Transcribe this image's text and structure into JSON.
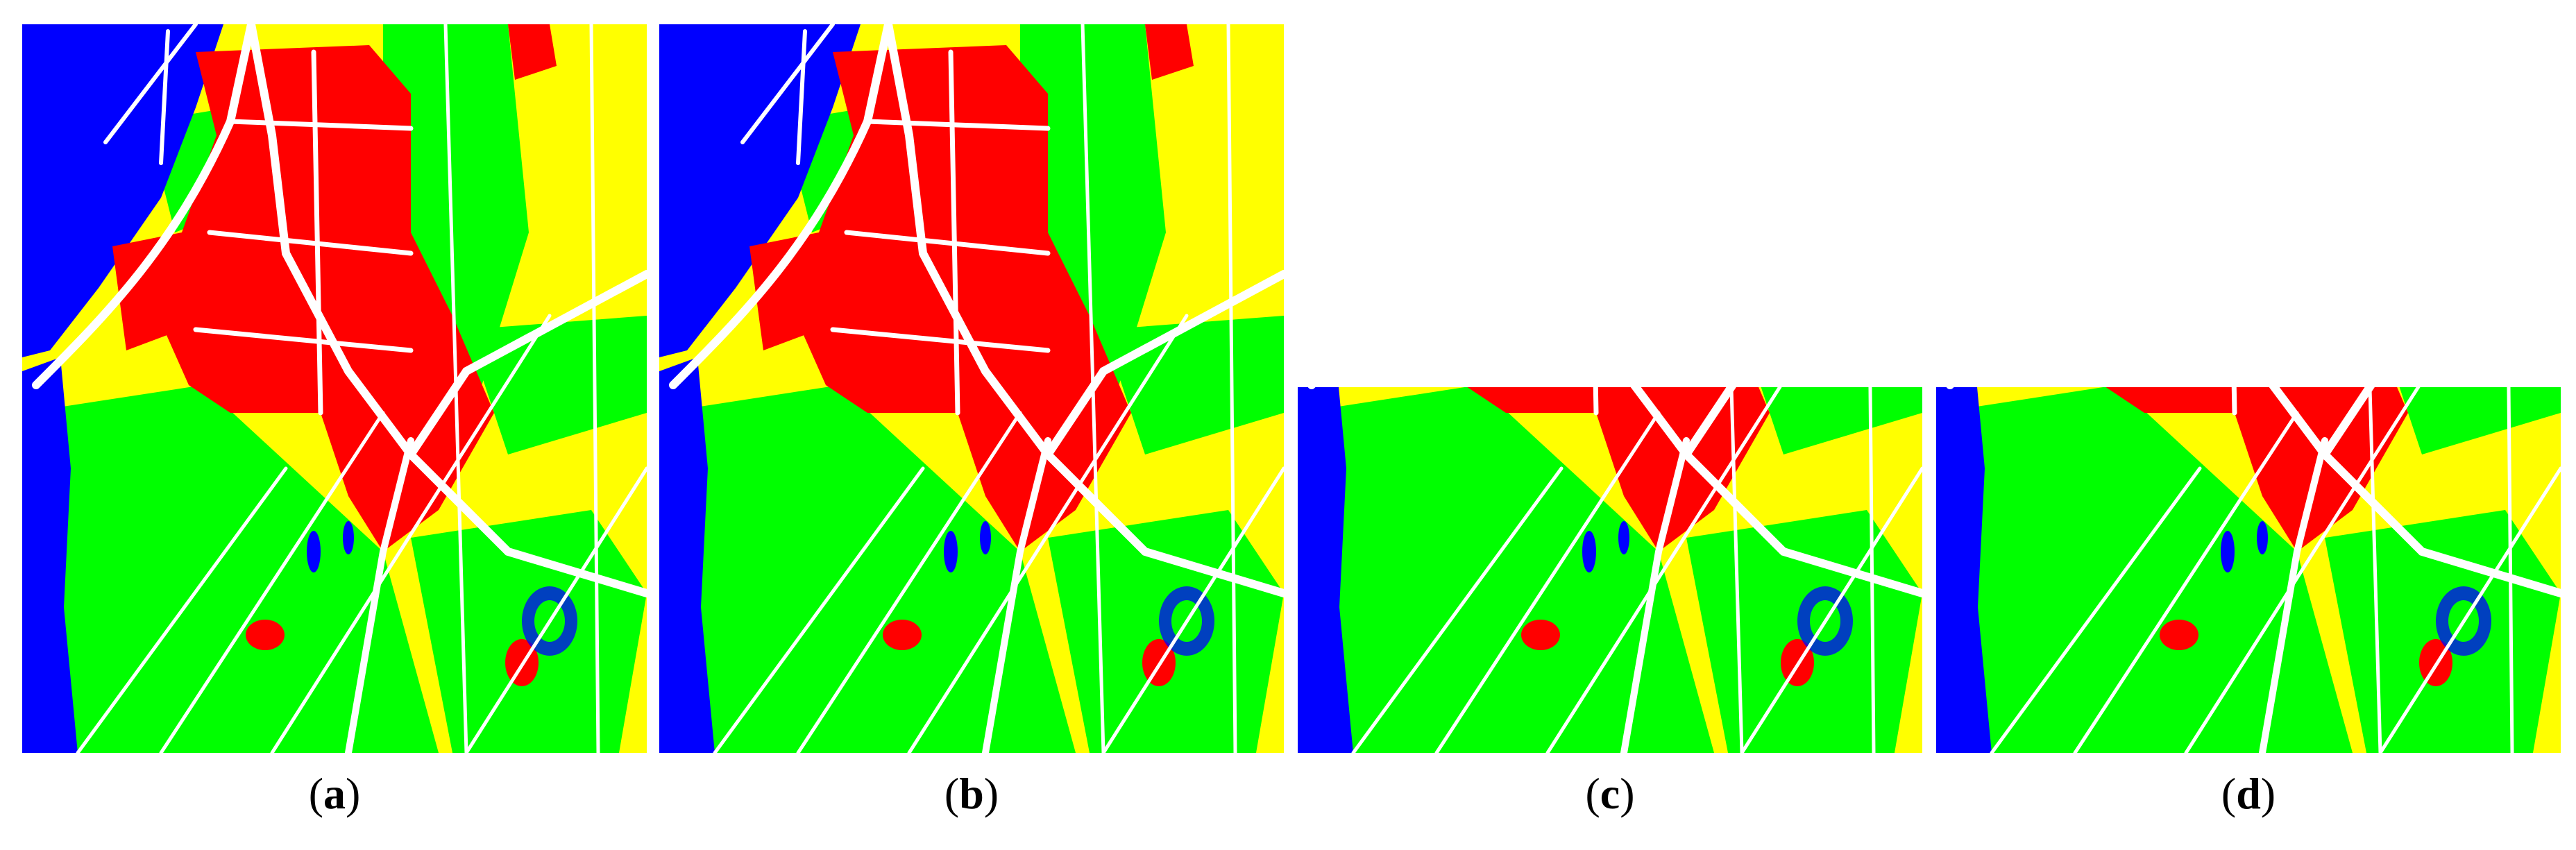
{
  "figure": {
    "panels": [
      {
        "id": "a",
        "label_open": "(",
        "label_letter": "a",
        "label_close": ")"
      },
      {
        "id": "b",
        "label_open": "(",
        "label_letter": "b",
        "label_close": ")"
      },
      {
        "id": "c",
        "label_open": "(",
        "label_letter": "c",
        "label_close": ")"
      },
      {
        "id": "d",
        "label_open": "(",
        "label_letter": "d",
        "label_close": ")"
      }
    ],
    "class_colors": {
      "water": "#0000ff",
      "urban": "#ff0000",
      "vegetation": "#00ff00",
      "farmland": "#ffff00",
      "roads": "#ffffff"
    }
  }
}
